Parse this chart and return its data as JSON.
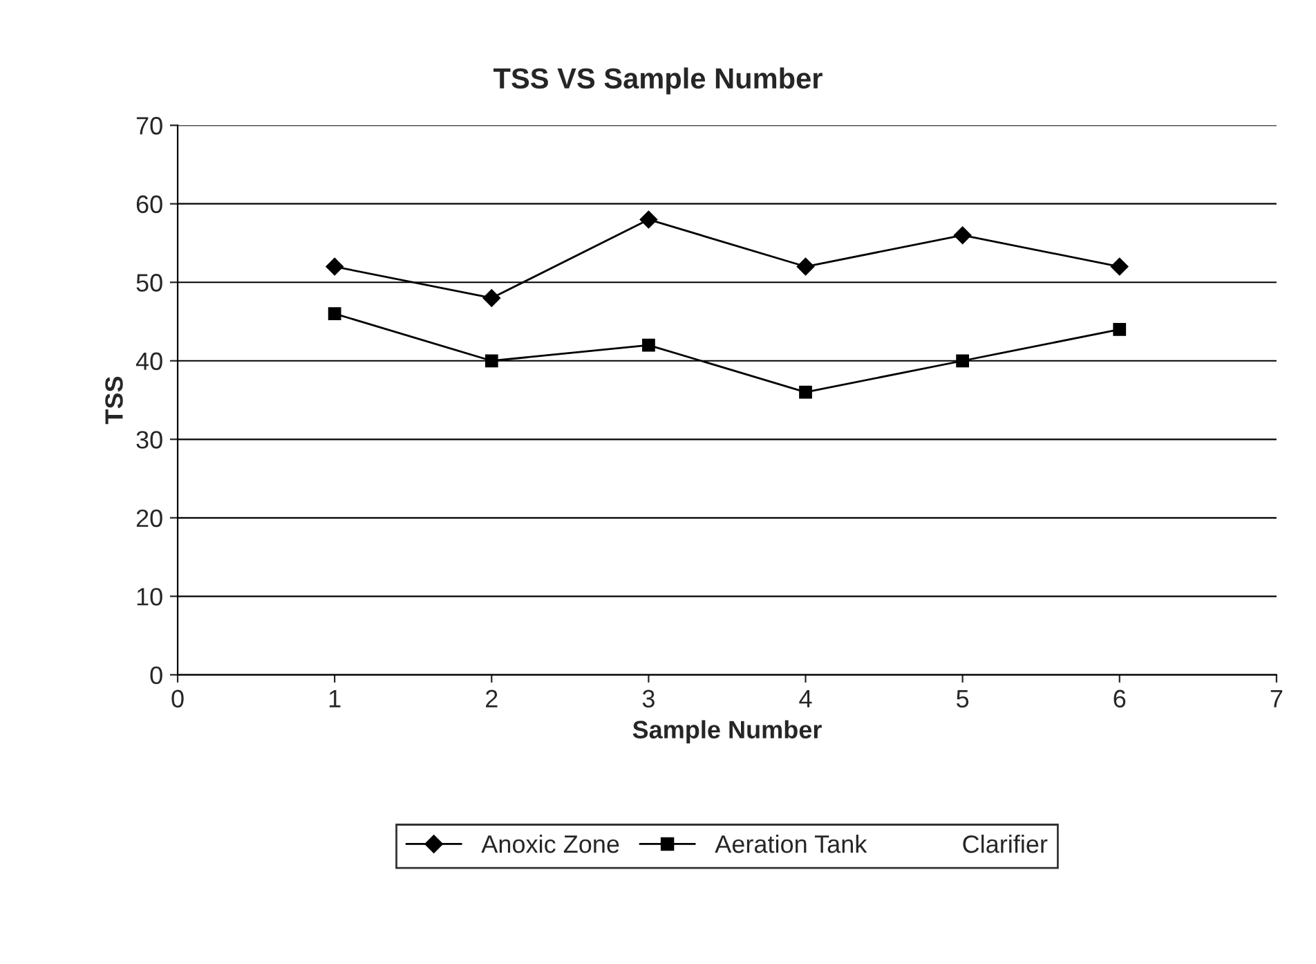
{
  "chart_data": {
    "type": "line",
    "title": "TSS VS Sample Number",
    "xlabel": "Sample Number",
    "ylabel": "TSS",
    "x": [
      1,
      2,
      3,
      4,
      5,
      6
    ],
    "series": [
      {
        "name": "Anoxic Zone",
        "color": "#000000",
        "marker": "diamond",
        "values": [
          52,
          48,
          58,
          52,
          56,
          52
        ]
      },
      {
        "name": "Aeration Tank",
        "color": "#000000",
        "marker": "square",
        "values": [
          46,
          40,
          42,
          36,
          40,
          44
        ]
      },
      {
        "name": "Clarifier",
        "marker": "none",
        "values": [
          null,
          null,
          null,
          null,
          null,
          null
        ]
      }
    ],
    "xlim": [
      0,
      7
    ],
    "xticks": [
      0,
      1,
      2,
      3,
      4,
      5,
      6,
      7
    ],
    "ylim": [
      0,
      70
    ],
    "yticks": [
      0,
      10,
      20,
      30,
      40,
      50,
      60,
      70
    ],
    "grid": "y",
    "legend": "bottom",
    "line_style": "solid"
  }
}
